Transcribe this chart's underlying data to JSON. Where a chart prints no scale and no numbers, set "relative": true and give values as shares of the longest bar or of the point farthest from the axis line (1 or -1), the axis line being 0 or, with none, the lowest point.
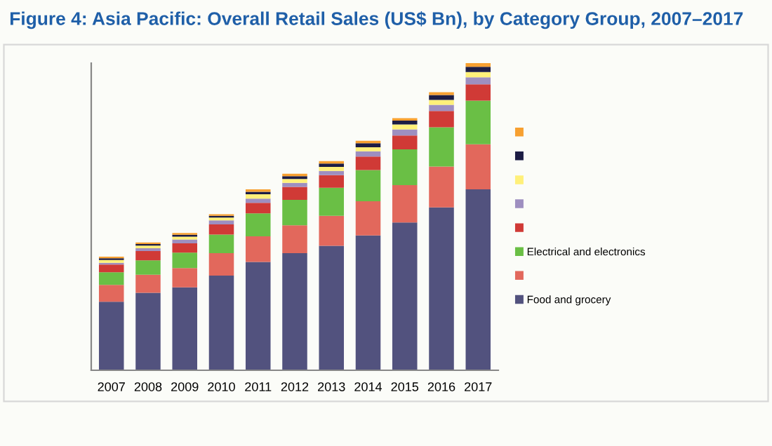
{
  "chart_data": {
    "type": "bar",
    "title": "Figure 4: Asia Pacific: Overall Retail Sales (US$ Bn), by Category Group, 2007–2017",
    "categories": [
      "2007",
      "2008",
      "2009",
      "2010",
      "2011",
      "2012",
      "2013",
      "2014",
      "2015",
      "2016",
      "2017"
    ],
    "stacked": true,
    "relative": true,
    "legend": "right",
    "grid": false,
    "series": [
      {
        "name": "Food and grocery",
        "color": "#52527e",
        "values": [
          0.223,
          0.252,
          0.27,
          0.308,
          0.353,
          0.381,
          0.405,
          0.439,
          0.481,
          0.53,
          0.589
        ]
      },
      {
        "color": "#e2685c",
        "values": [
          0.055,
          0.059,
          0.063,
          0.073,
          0.083,
          0.091,
          0.098,
          0.111,
          0.122,
          0.133,
          0.147
        ]
      },
      {
        "name": "Electrical and electronics",
        "color": "#6abf45",
        "values": [
          0.041,
          0.047,
          0.05,
          0.061,
          0.075,
          0.083,
          0.091,
          0.102,
          0.116,
          0.128,
          0.142
        ]
      },
      {
        "color": "#d03a36",
        "values": [
          0.025,
          0.03,
          0.03,
          0.033,
          0.034,
          0.042,
          0.041,
          0.044,
          0.045,
          0.053,
          0.053
        ]
      },
      {
        "color": "#9e8fc0",
        "values": [
          0.006,
          0.009,
          0.013,
          0.013,
          0.014,
          0.013,
          0.014,
          0.017,
          0.02,
          0.02,
          0.023
        ]
      },
      {
        "color": "#fff07a",
        "values": [
          0.009,
          0.009,
          0.009,
          0.009,
          0.014,
          0.013,
          0.013,
          0.013,
          0.016,
          0.016,
          0.017
        ]
      },
      {
        "color": "#1c1c44",
        "values": [
          0.006,
          0.005,
          0.006,
          0.006,
          0.008,
          0.009,
          0.011,
          0.013,
          0.013,
          0.016,
          0.017
        ]
      },
      {
        "color": "#f7a030",
        "values": [
          0.005,
          0.005,
          0.006,
          0.005,
          0.008,
          0.008,
          0.008,
          0.008,
          0.008,
          0.009,
          0.012
        ]
      }
    ]
  }
}
